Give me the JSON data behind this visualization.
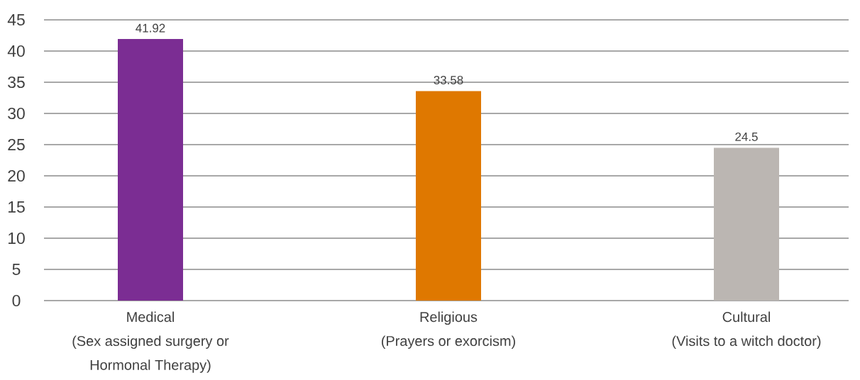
{
  "chart_data": {
    "type": "bar",
    "categories": [
      "Medical\n(Sex assigned surgery or\nHormonal Therapy)",
      "Religious\n(Prayers or exorcism)",
      "Cultural\n(Visits to a witch doctor)"
    ],
    "values": [
      41.92,
      33.58,
      24.5
    ],
    "colors": [
      "#7b2d93",
      "#df7800",
      "#bbb6b2"
    ],
    "ylim": [
      0,
      45
    ],
    "yticks": [
      0,
      5,
      10,
      15,
      20,
      25,
      30,
      35,
      40,
      45
    ],
    "grid": "y",
    "data_labels": true
  }
}
